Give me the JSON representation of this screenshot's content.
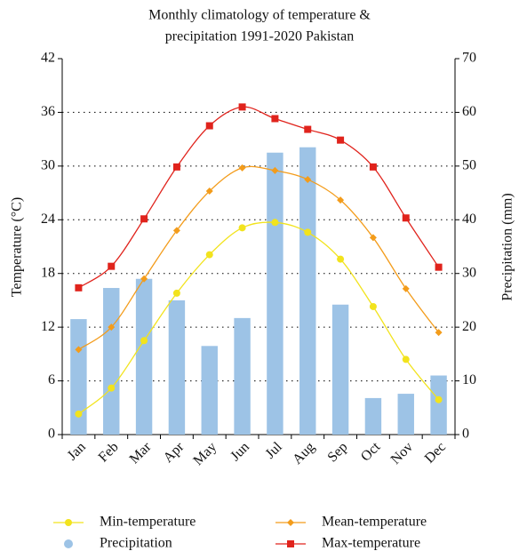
{
  "chart_data": {
    "type": "combo",
    "title": [
      "Monthly climatology of temperature &",
      "precipitation 1991-2020 Pakistan"
    ],
    "y_label": "Temperature (°C)",
    "y2_label": "Precipitation (mm)",
    "categories": [
      "Jan",
      "Feb",
      "Mar",
      "Apr",
      "May",
      "Jun",
      "Jul",
      "Aug",
      "Sep",
      "Oct",
      "Nov",
      "Dec"
    ],
    "ylim": [
      0,
      42
    ],
    "yticks": [
      0,
      6,
      12,
      18,
      24,
      30,
      36,
      42
    ],
    "y2lim": [
      0,
      70
    ],
    "y2ticks": [
      0,
      10,
      20,
      30,
      40,
      50,
      60,
      70
    ],
    "grid": true,
    "series": [
      {
        "name": "Min-temperature",
        "type": "line",
        "marker": "circle",
        "color": "#f2e31d",
        "values": [
          2.3,
          5.2,
          10.5,
          15.8,
          20.1,
          23.1,
          23.7,
          22.6,
          19.6,
          14.3,
          8.4,
          3.9
        ]
      },
      {
        "name": "Mean-temperature",
        "type": "line",
        "marker": "diamond",
        "color": "#f39c1b",
        "values": [
          9.5,
          12.0,
          17.4,
          22.8,
          27.2,
          29.8,
          29.5,
          28.5,
          26.2,
          22.0,
          16.3,
          11.4
        ]
      },
      {
        "name": "Precipitation",
        "type": "bar",
        "axis": "y2",
        "color": "#9dc3e6",
        "values": [
          21.5,
          27.3,
          29.0,
          25.0,
          16.5,
          21.7,
          52.5,
          53.5,
          24.2,
          6.8,
          7.6,
          11.0
        ]
      },
      {
        "name": "Max-temperature",
        "type": "line",
        "marker": "square",
        "color": "#e0231c",
        "values": [
          16.4,
          18.8,
          24.1,
          29.9,
          34.5,
          36.6,
          35.3,
          34.1,
          32.9,
          29.9,
          24.2,
          18.7
        ]
      }
    ]
  }
}
